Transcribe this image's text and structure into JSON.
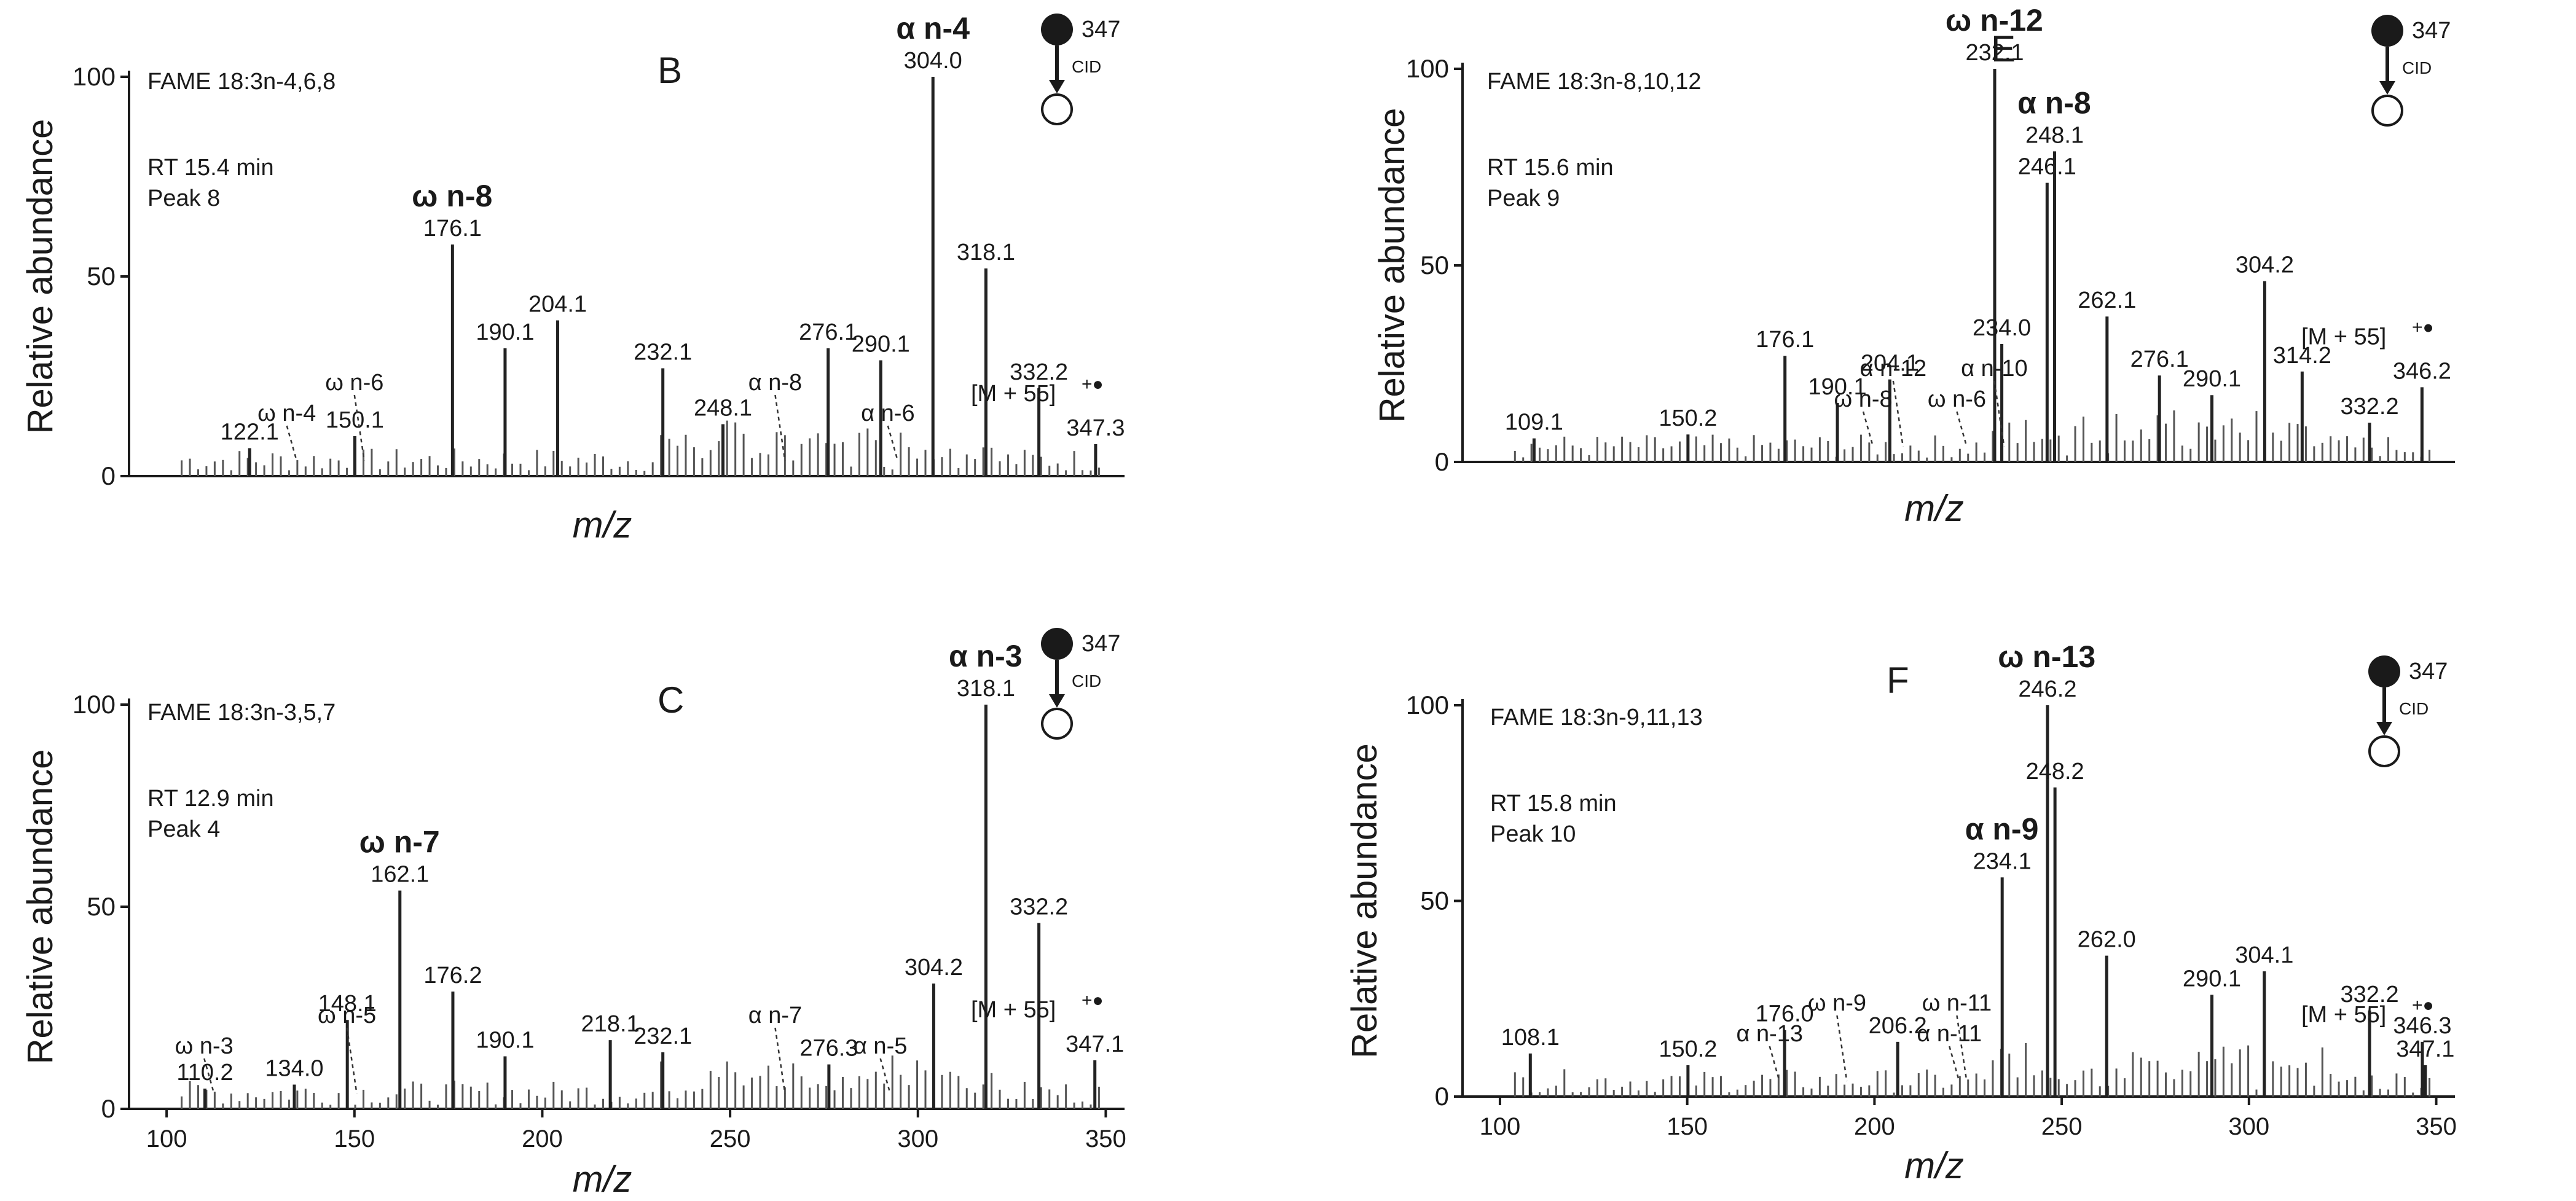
{
  "figure": {
    "background": "#ffffff",
    "ink": "#1a1a1a"
  },
  "chart_data": [
    {
      "type": "bar",
      "panel": "B",
      "title": "FAME 18:3n-4,6,8",
      "rt": "RT 15.4 min",
      "peak": "Peak 8",
      "precursor": "347",
      "activation": "CID",
      "ylabel": "Relative abundance",
      "xlabel": "m/z",
      "ylim": [
        0,
        100
      ],
      "xlim": [
        90,
        355
      ],
      "yticks": [
        "0",
        "50",
        "100"
      ],
      "xticks": [],
      "molecular_ion_label": "[M + 55]",
      "molecular_ion_superscript": "+●",
      "peaks": [
        {
          "mz": 122.1,
          "value": 7,
          "label": "122.1"
        },
        {
          "mz": 150.1,
          "value": 10,
          "label": "150.1"
        },
        {
          "mz": 176.1,
          "value": 58,
          "label": "176.1"
        },
        {
          "mz": 190.1,
          "value": 32,
          "label": "190.1"
        },
        {
          "mz": 204.1,
          "value": 39,
          "label": "204.1"
        },
        {
          "mz": 232.1,
          "value": 27,
          "label": "232.1"
        },
        {
          "mz": 248.1,
          "value": 13,
          "label": "248.1"
        },
        {
          "mz": 276.1,
          "value": 32,
          "label": "276.1"
        },
        {
          "mz": 290.1,
          "value": 29,
          "label": "290.1"
        },
        {
          "mz": 304.0,
          "value": 100,
          "label": "304.0"
        },
        {
          "mz": 318.1,
          "value": 52,
          "label": "318.1"
        },
        {
          "mz": 332.2,
          "value": 22,
          "label": "332.2"
        },
        {
          "mz": 347.3,
          "value": 8,
          "label": "347.3"
        }
      ],
      "annotations": [
        {
          "text": "ω n-4",
          "mz": 132
        },
        {
          "text": "ω n-6",
          "mz": 150
        },
        {
          "text": "ω n-8",
          "mz": 176,
          "bold": true
        },
        {
          "text": "α n-8",
          "mz": 262
        },
        {
          "text": "α n-6",
          "mz": 292
        },
        {
          "text": "α n-4",
          "mz": 304,
          "bold": true
        }
      ]
    },
    {
      "type": "bar",
      "panel": "E",
      "title": "FAME 18:3n-8,10,12",
      "rt": "RT 15.6 min",
      "peak": "Peak 9",
      "precursor": "347",
      "activation": "CID",
      "ylabel": "Relative abundance",
      "xlabel": "m/z",
      "ylim": [
        0,
        100
      ],
      "xlim": [
        90,
        355
      ],
      "yticks": [
        "0",
        "50",
        "100"
      ],
      "xticks": [],
      "molecular_ion_label": "[M + 55]",
      "molecular_ion_superscript": "+●",
      "peaks": [
        {
          "mz": 109.1,
          "value": 6,
          "label": "109.1"
        },
        {
          "mz": 150.2,
          "value": 7,
          "label": "150.2"
        },
        {
          "mz": 176.1,
          "value": 27,
          "label": "176.1"
        },
        {
          "mz": 190.1,
          "value": 15,
          "label": "190.1"
        },
        {
          "mz": 204.1,
          "value": 21,
          "label": "204.1"
        },
        {
          "mz": 232.1,
          "value": 100,
          "label": "232.1"
        },
        {
          "mz": 234.0,
          "value": 30,
          "label": "234.0"
        },
        {
          "mz": 246.1,
          "value": 71,
          "label": "246.1"
        },
        {
          "mz": 248.1,
          "value": 79,
          "label": "248.1"
        },
        {
          "mz": 262.1,
          "value": 37,
          "label": "262.1"
        },
        {
          "mz": 276.1,
          "value": 22,
          "label": "276.1"
        },
        {
          "mz": 290.1,
          "value": 17,
          "label": "290.1"
        },
        {
          "mz": 304.2,
          "value": 46,
          "label": "304.2"
        },
        {
          "mz": 314.2,
          "value": 23,
          "label": "314.2"
        },
        {
          "mz": 332.2,
          "value": 10,
          "label": "332.2"
        },
        {
          "mz": 346.2,
          "value": 19,
          "label": "346.2"
        }
      ],
      "annotations": [
        {
          "text": "ω n-8",
          "mz": 197
        },
        {
          "text": "α n-12",
          "mz": 205
        },
        {
          "text": "ω n-6",
          "mz": 222
        },
        {
          "text": "α n-10",
          "mz": 232
        },
        {
          "text": "α n-8",
          "mz": 248,
          "bold": true
        },
        {
          "text": "ω n-12",
          "mz": 232,
          "bold": true
        }
      ]
    },
    {
      "type": "bar",
      "panel": "C",
      "title": "FAME 18:3n-3,5,7",
      "rt": "RT 12.9 min",
      "peak": "Peak 4",
      "precursor": "347",
      "activation": "CID",
      "ylabel": "Relative abundance",
      "xlabel": "m/z",
      "ylim": [
        0,
        100
      ],
      "xlim": [
        90,
        355
      ],
      "yticks": [
        "0",
        "50",
        "100"
      ],
      "xticks": [
        "100",
        "150",
        "200",
        "250",
        "300",
        "350"
      ],
      "molecular_ion_label": "[M + 55]",
      "molecular_ion_superscript": "+●",
      "peaks": [
        {
          "mz": 110.2,
          "value": 5,
          "label": "110.2"
        },
        {
          "mz": 134.0,
          "value": 6,
          "label": "134.0"
        },
        {
          "mz": 148.1,
          "value": 22,
          "label": "148.1"
        },
        {
          "mz": 162.1,
          "value": 54,
          "label": "162.1"
        },
        {
          "mz": 176.2,
          "value": 29,
          "label": "176.2"
        },
        {
          "mz": 190.1,
          "value": 13,
          "label": "190.1"
        },
        {
          "mz": 218.1,
          "value": 17,
          "label": "218.1"
        },
        {
          "mz": 232.1,
          "value": 14,
          "label": "232.1"
        },
        {
          "mz": 276.3,
          "value": 11,
          "label": "276.3"
        },
        {
          "mz": 304.2,
          "value": 31,
          "label": "304.2"
        },
        {
          "mz": 318.1,
          "value": 100,
          "label": "318.1"
        },
        {
          "mz": 332.2,
          "value": 46,
          "label": "332.2"
        },
        {
          "mz": 347.1,
          "value": 12,
          "label": "347.1"
        }
      ],
      "annotations": [
        {
          "text": "ω n-3",
          "mz": 110
        },
        {
          "text": "ω n-5",
          "mz": 148
        },
        {
          "text": "ω n-7",
          "mz": 162,
          "bold": true
        },
        {
          "text": "α n-7",
          "mz": 262
        },
        {
          "text": "α n-5",
          "mz": 290
        },
        {
          "text": "α n-3",
          "mz": 318,
          "bold": true
        }
      ]
    },
    {
      "type": "bar",
      "panel": "F",
      "title": "FAME 18:3n-9,11,13",
      "rt": "RT 15.8 min",
      "peak": "Peak 10",
      "precursor": "347",
      "activation": "CID",
      "ylabel": "Relative abundance",
      "xlabel": "m/z",
      "ylim": [
        0,
        100
      ],
      "xlim": [
        90,
        355
      ],
      "yticks": [
        "0",
        "50",
        "100"
      ],
      "xticks": [
        "100",
        "150",
        "200",
        "250",
        "300",
        "350"
      ],
      "molecular_ion_label": "[M + 55]",
      "molecular_ion_superscript": "+●",
      "peaks": [
        {
          "mz": 108.1,
          "value": 11,
          "label": "108.1"
        },
        {
          "mz": 150.2,
          "value": 8,
          "label": "150.2"
        },
        {
          "mz": 176.0,
          "value": 17,
          "label": "176.0"
        },
        {
          "mz": 206.2,
          "value": 14,
          "label": "206.2"
        },
        {
          "mz": 234.1,
          "value": 56,
          "label": "234.1"
        },
        {
          "mz": 246.2,
          "value": 100,
          "label": "246.2"
        },
        {
          "mz": 248.2,
          "value": 79,
          "label": "248.2"
        },
        {
          "mz": 262.0,
          "value": 36,
          "label": "262.0"
        },
        {
          "mz": 290.1,
          "value": 26,
          "label": "290.1"
        },
        {
          "mz": 304.1,
          "value": 32,
          "label": "304.1"
        },
        {
          "mz": 332.2,
          "value": 22,
          "label": "332.2"
        },
        {
          "mz": 346.3,
          "value": 14,
          "label": "346.3"
        },
        {
          "mz": 347.1,
          "value": 8,
          "label": "347.1"
        }
      ],
      "annotations": [
        {
          "text": "α n-13",
          "mz": 172
        },
        {
          "text": "ω n-9",
          "mz": 190
        },
        {
          "text": "α n-11",
          "mz": 220
        },
        {
          "text": "ω n-11",
          "mz": 222
        },
        {
          "text": "α n-9",
          "mz": 234,
          "bold": true
        },
        {
          "text": "ω n-13",
          "mz": 246,
          "bold": true
        }
      ]
    }
  ]
}
